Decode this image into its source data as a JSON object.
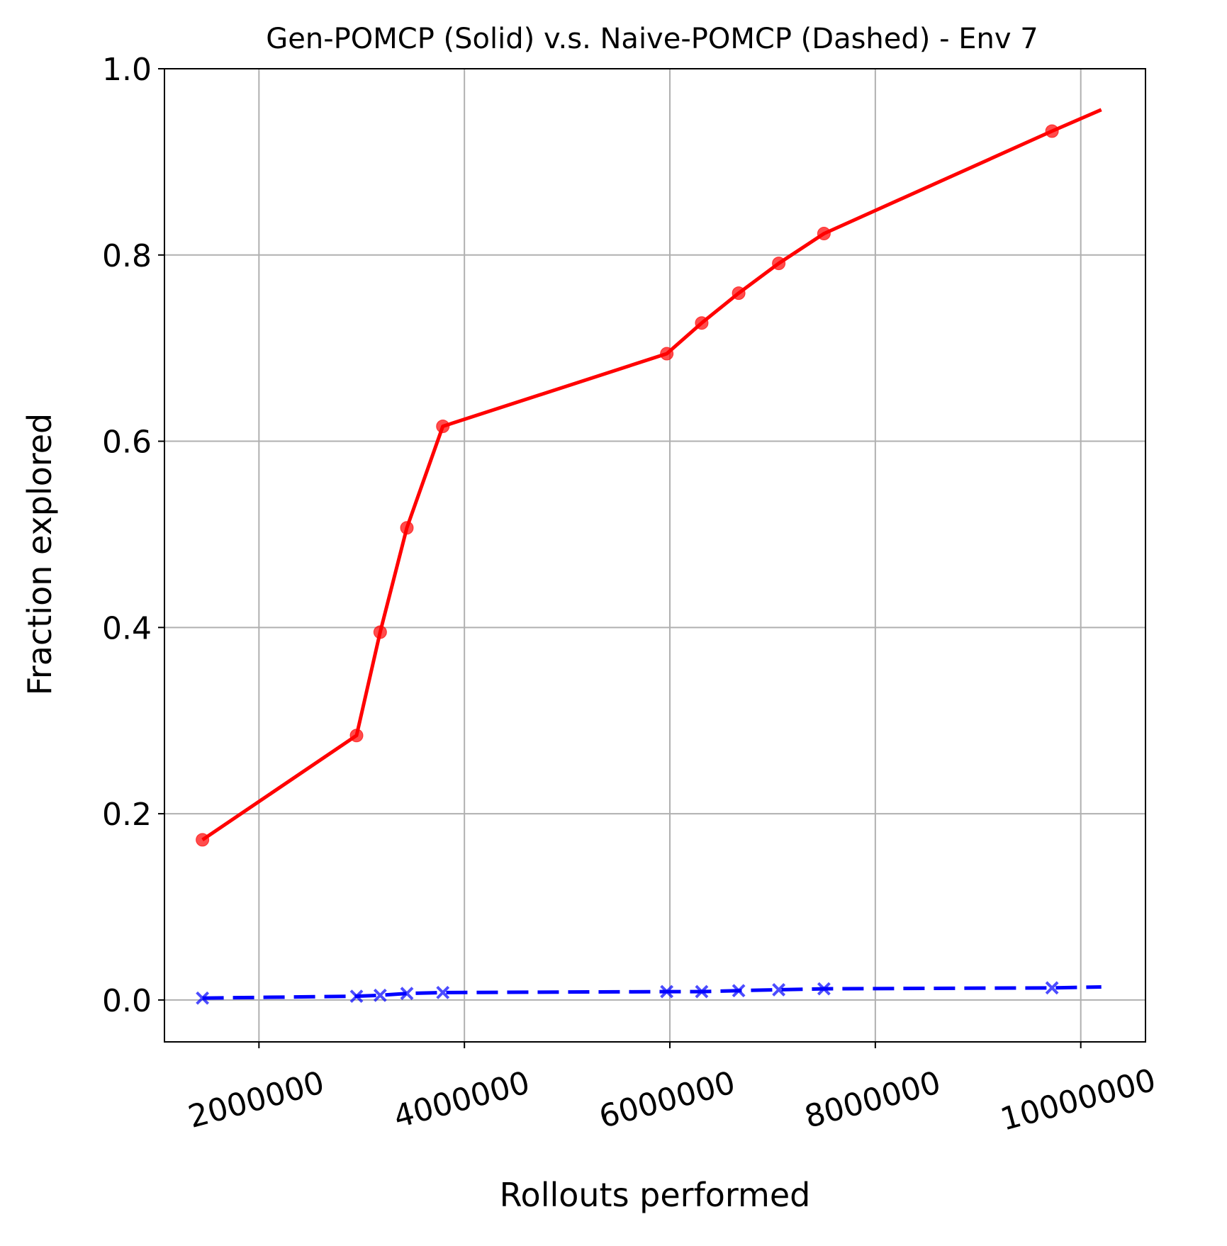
{
  "chart_data": {
    "type": "line",
    "title": "Gen-POMCP (Solid) v.s. Naive-POMCP (Dashed) - Env 7",
    "xlabel": "Rollouts performed",
    "ylabel": "Fraction explored",
    "xlim": [
      1080000,
      10630000
    ],
    "ylim": [
      -0.045,
      1.0
    ],
    "xticks": [
      2000000,
      4000000,
      6000000,
      8000000,
      10000000
    ],
    "xtick_labels": [
      "2000000",
      "4000000",
      "6000000",
      "8000000",
      "10000000"
    ],
    "yticks": [
      0.0,
      0.2,
      0.4,
      0.6,
      0.8,
      1.0
    ],
    "ytick_labels": [
      "0.0",
      "0.2",
      "0.4",
      "0.6",
      "0.8",
      "1.0"
    ],
    "grid": true,
    "series": [
      {
        "style": "solid",
        "marker": "circle",
        "color": "#ff0000",
        "x": [
          1450000,
          2950000,
          3180000,
          3440000,
          3790000,
          5970000,
          6310000,
          6670000,
          7060000,
          7500000,
          9720000
        ],
        "y": [
          0.172,
          0.284,
          0.395,
          0.507,
          0.616,
          0.694,
          0.727,
          0.759,
          0.791,
          0.823,
          0.933
        ],
        "line_end": [
          10200000,
          0.956
        ]
      },
      {
        "style": "dashed",
        "marker": "x",
        "color": "#0000ff",
        "x": [
          1450000,
          2950000,
          3180000,
          3440000,
          3790000,
          5970000,
          6310000,
          6670000,
          7060000,
          7500000,
          9720000
        ],
        "y": [
          0.002,
          0.004,
          0.005,
          0.007,
          0.008,
          0.009,
          0.009,
          0.01,
          0.011,
          0.012,
          0.013
        ],
        "line_end": [
          10200000,
          0.014
        ]
      }
    ]
  }
}
